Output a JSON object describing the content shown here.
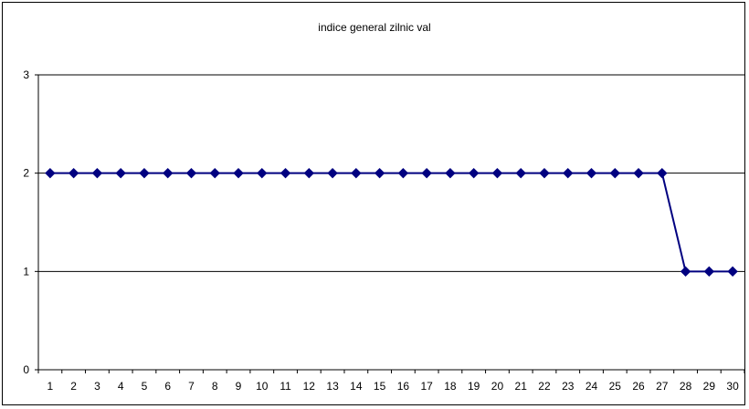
{
  "chart_data": {
    "type": "line",
    "title": "indice general zilnic val",
    "xlabel": "",
    "ylabel": "",
    "x": [
      1,
      2,
      3,
      4,
      5,
      6,
      7,
      8,
      9,
      10,
      11,
      12,
      13,
      14,
      15,
      16,
      17,
      18,
      19,
      20,
      21,
      22,
      23,
      24,
      25,
      26,
      27,
      28,
      29,
      30
    ],
    "series": [
      {
        "values": [
          2,
          2,
          2,
          2,
          2,
          2,
          2,
          2,
          2,
          2,
          2,
          2,
          2,
          2,
          2,
          2,
          2,
          2,
          2,
          2,
          2,
          2,
          2,
          2,
          2,
          2,
          2,
          1,
          1,
          1
        ]
      }
    ],
    "ylim": [
      0,
      3
    ],
    "yticks": [
      0,
      1,
      2,
      3
    ],
    "grid": "horizontal",
    "legend": "none",
    "line_color": "#000080",
    "marker": "diamond"
  }
}
